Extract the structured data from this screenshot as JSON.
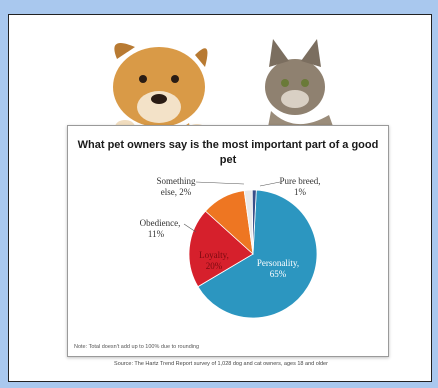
{
  "chart_data": {
    "type": "pie",
    "title": "What pet owners say is the most important part of a good pet",
    "slices": [
      {
        "label": "Personality,",
        "value_label": "65%",
        "value": 65,
        "color": "#2c96c0"
      },
      {
        "label": "Loyalty,",
        "value_label": "20%",
        "value": 20,
        "color": "#d6202c"
      },
      {
        "label": "Obedience,",
        "value_label": "11%",
        "value": 11,
        "color": "#ee7622"
      },
      {
        "label": "Something",
        "label2": "else, 2%",
        "value": 2,
        "color": "#e9e9e9"
      },
      {
        "label": "Pure breed,",
        "value_label": "1%",
        "value": 1,
        "color": "#3a4e88"
      }
    ],
    "note": "Note: Total doesn't add up to 100% due to rounding",
    "source": "Source: The Hartz Trend Report survey of 1,028 dog and cat owners, ages 18 and older"
  }
}
